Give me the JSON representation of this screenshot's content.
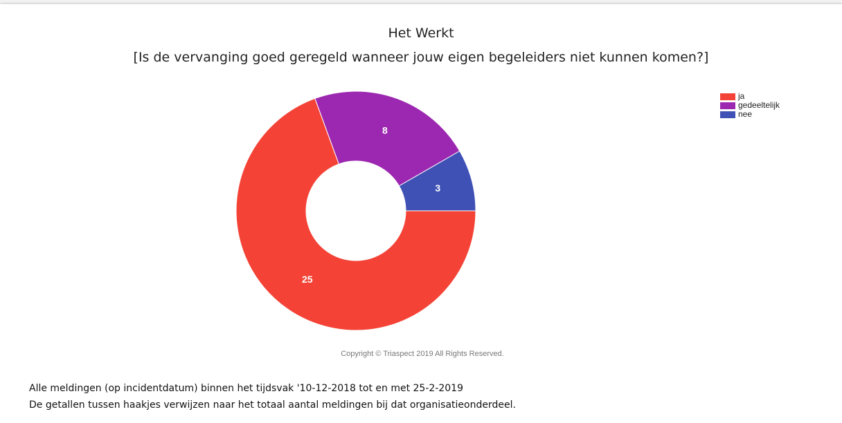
{
  "chart_data": {
    "type": "donut",
    "title": "Het Werkt",
    "subtitle": "[Is de vervanging goed geregeld wanneer jouw eigen begeleiders niet kunnen komen?]",
    "categories": [
      "ja",
      "gedeeltelijk",
      "nee"
    ],
    "values": [
      25,
      8,
      3
    ],
    "colors": [
      "#f44336",
      "#9c27b0",
      "#3f51b5"
    ],
    "legend": "top-right",
    "credit": "Copyright © Triaspect 2019 All Rights Reserved."
  },
  "notes": [
    "Alle meldingen (op incidentdatum) binnen het tijdsvak '10-12-2018 tot en met 25-2-2019",
    "De getallen tussen haakjes verwijzen naar het totaal aantal meldingen bij dat organisatieonderdeel."
  ]
}
